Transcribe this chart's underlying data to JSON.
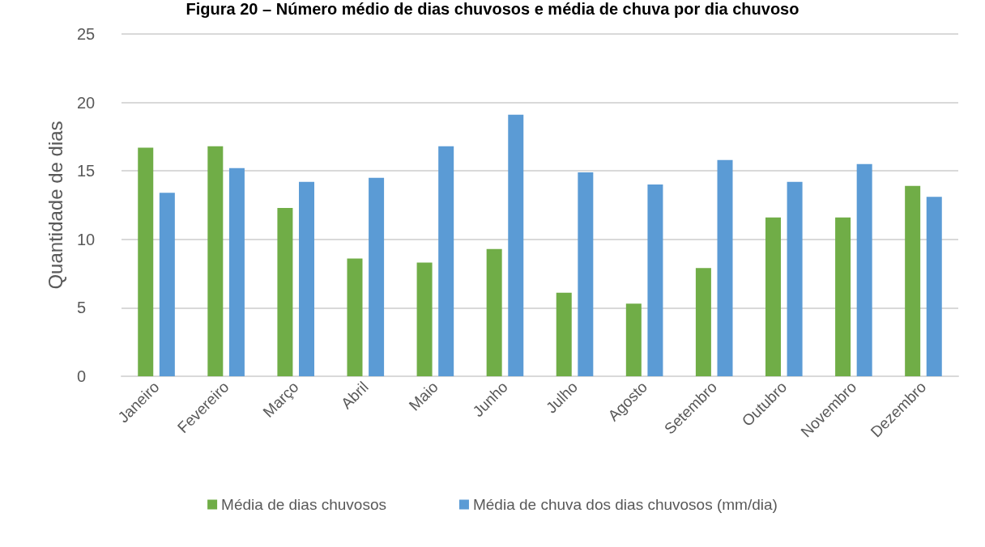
{
  "chart_data": {
    "type": "bar",
    "title": "Figura 20 – Número médio de dias chuvosos e média de chuva por dia chuvoso",
    "ylabel": "Quantidade de dias",
    "categories": [
      "Janeiro",
      "Fevereiro",
      "Março",
      "Abril",
      "Maio",
      "Junho",
      "Julho",
      "Agosto",
      "Setembro",
      "Outubro",
      "Novembro",
      "Dezembro"
    ],
    "series": [
      {
        "name": "Média de dias chuvosos",
        "color": "#70ad47",
        "values": [
          16.7,
          16.8,
          12.3,
          8.6,
          8.3,
          9.3,
          6.1,
          5.3,
          7.9,
          11.6,
          11.6,
          13.9
        ]
      },
      {
        "name": "Média de chuva dos dias chuvosos (mm/dia)",
        "color": "#5b9bd5",
        "values": [
          13.4,
          15.2,
          14.2,
          14.5,
          16.8,
          19.1,
          14.9,
          14.0,
          15.8,
          14.2,
          15.5,
          13.1
        ]
      }
    ],
    "ylim": [
      0,
      25
    ],
    "yticks": [
      0,
      5,
      10,
      15,
      20,
      25
    ],
    "grid": "y",
    "legend": "bottom"
  }
}
